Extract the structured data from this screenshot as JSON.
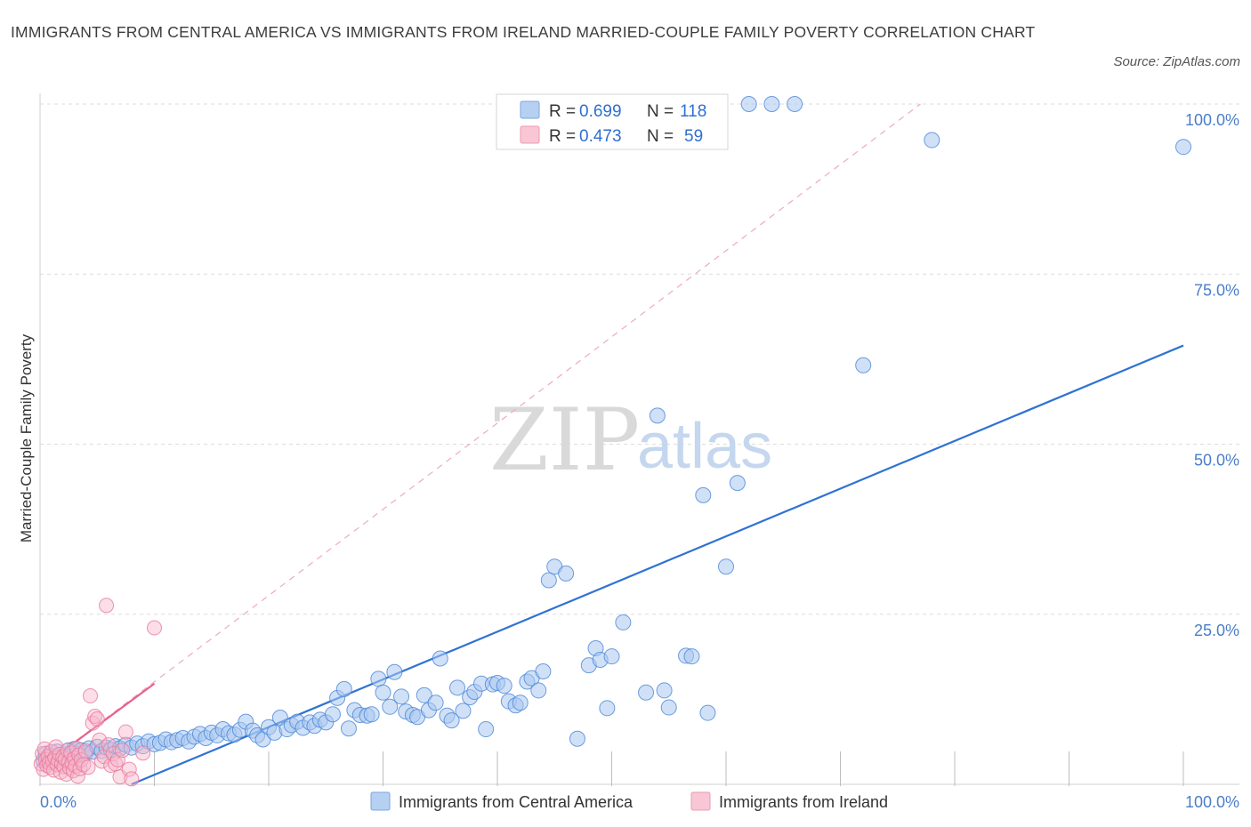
{
  "title": "IMMIGRANTS FROM CENTRAL AMERICA VS IMMIGRANTS FROM IRELAND MARRIED-COUPLE FAMILY POVERTY CORRELATION CHART",
  "source": "Source: ZipAtlas.com",
  "watermark": {
    "zip": "ZIP",
    "atlas": "atlas"
  },
  "colors": {
    "blue": "#4a86d8",
    "blue_fill": "#a9c8f0",
    "blue_line": "#2f72d4",
    "pink": "#e8789c",
    "pink_fill": "#f6b6c9",
    "pink_line": "#e8608e",
    "grid": "#dcdcdc",
    "tick_text": "#4a7ecb"
  },
  "legend": {
    "r_label": "R =",
    "n_label": "N =",
    "series1": {
      "r": "0.699",
      "n": "118"
    },
    "series2": {
      "r": "0.473",
      "n": "59"
    }
  },
  "chart_data": {
    "type": "scatter",
    "title": "IMMIGRANTS FROM CENTRAL AMERICA VS IMMIGRANTS FROM IRELAND MARRIED-COUPLE FAMILY POVERTY CORRELATION CHART",
    "xlabel": "",
    "ylabel": "Married-Couple Family Poverty",
    "xlim": [
      0,
      100
    ],
    "ylim": [
      0,
      100
    ],
    "x_tick_labels": [
      "0.0%",
      "100.0%"
    ],
    "y_tick_labels": [
      "25.0%",
      "50.0%",
      "75.0%",
      "100.0%"
    ],
    "y_ticks": [
      25,
      50,
      75,
      100
    ],
    "grid": true,
    "legend_position": "top-center",
    "series": [
      {
        "name": "Immigrants from Central America",
        "color": "#4a86d8",
        "r": 0.699,
        "n": 118,
        "trend": {
          "x": [
            8,
            100
          ],
          "y": [
            0,
            64.5
          ]
        },
        "points": [
          [
            0.3,
            3.5
          ],
          [
            0.5,
            4.5
          ],
          [
            0.8,
            3.8
          ],
          [
            1,
            4.2
          ],
          [
            1.2,
            3.5
          ],
          [
            1.5,
            4.8
          ],
          [
            1.8,
            4
          ],
          [
            2,
            3.6
          ],
          [
            2.2,
            4.4
          ],
          [
            2.5,
            5
          ],
          [
            2.8,
            4.2
          ],
          [
            3,
            5.2
          ],
          [
            3.3,
            4.5
          ],
          [
            3.6,
            5
          ],
          [
            4,
            4.6
          ],
          [
            4.3,
            5.3
          ],
          [
            4.6,
            4.8
          ],
          [
            5,
            5.5
          ],
          [
            5.4,
            4.9
          ],
          [
            5.8,
            5.4
          ],
          [
            6.2,
            5.1
          ],
          [
            6.6,
            5.6
          ],
          [
            7,
            5.3
          ],
          [
            7.5,
            5.8
          ],
          [
            8,
            5.4
          ],
          [
            8.5,
            6
          ],
          [
            9,
            5.6
          ],
          [
            9.5,
            6.3
          ],
          [
            10,
            5.9
          ],
          [
            10.5,
            6.1
          ],
          [
            11,
            6.6
          ],
          [
            11.5,
            6.2
          ],
          [
            12,
            6.5
          ],
          [
            12.5,
            6.8
          ],
          [
            13,
            6.3
          ],
          [
            13.5,
            7
          ],
          [
            14,
            7.4
          ],
          [
            14.5,
            6.8
          ],
          [
            15,
            7.6
          ],
          [
            15.5,
            7.2
          ],
          [
            16,
            8.1
          ],
          [
            16.5,
            7.5
          ],
          [
            17,
            7.3
          ],
          [
            17.5,
            8
          ],
          [
            18,
            9.2
          ],
          [
            18.6,
            7.9
          ],
          [
            19,
            7.2
          ],
          [
            19.5,
            6.6
          ],
          [
            20,
            8.4
          ],
          [
            20.5,
            7.6
          ],
          [
            21,
            9.8
          ],
          [
            21.6,
            8.1
          ],
          [
            22,
            8.7
          ],
          [
            22.5,
            9.2
          ],
          [
            23,
            8.3
          ],
          [
            23.6,
            9.1
          ],
          [
            24,
            8.6
          ],
          [
            24.5,
            9.5
          ],
          [
            25,
            9.1
          ],
          [
            25.6,
            10.3
          ],
          [
            26,
            12.7
          ],
          [
            26.6,
            14
          ],
          [
            27,
            8.2
          ],
          [
            27.5,
            10.9
          ],
          [
            28,
            10.2
          ],
          [
            28.6,
            10.1
          ],
          [
            29,
            10.3
          ],
          [
            29.6,
            15.5
          ],
          [
            30,
            13.5
          ],
          [
            30.6,
            11.4
          ],
          [
            31,
            16.5
          ],
          [
            31.6,
            12.9
          ],
          [
            32,
            10.7
          ],
          [
            32.6,
            10.2
          ],
          [
            33,
            9.9
          ],
          [
            33.6,
            13.1
          ],
          [
            34,
            10.9
          ],
          [
            34.6,
            12
          ],
          [
            35,
            18.5
          ],
          [
            35.6,
            10.1
          ],
          [
            36,
            9.4
          ],
          [
            36.5,
            14.2
          ],
          [
            37,
            10.8
          ],
          [
            37.6,
            12.8
          ],
          [
            38,
            13.6
          ],
          [
            38.6,
            14.8
          ],
          [
            39,
            8.1
          ],
          [
            39.6,
            14.7
          ],
          [
            40,
            14.9
          ],
          [
            40.6,
            14.5
          ],
          [
            41,
            12.2
          ],
          [
            41.6,
            11.6
          ],
          [
            42,
            12
          ],
          [
            42.6,
            15.1
          ],
          [
            43,
            15.6
          ],
          [
            43.6,
            13.8
          ],
          [
            44,
            16.6
          ],
          [
            44.5,
            30
          ],
          [
            45,
            32
          ],
          [
            46,
            31
          ],
          [
            47,
            6.7
          ],
          [
            48,
            17.5
          ],
          [
            48.6,
            20
          ],
          [
            49,
            18.3
          ],
          [
            49.6,
            11.2
          ],
          [
            50,
            18.8
          ],
          [
            51,
            23.8
          ],
          [
            53,
            13.5
          ],
          [
            54,
            54.2
          ],
          [
            54.6,
            13.8
          ],
          [
            55,
            11.3
          ],
          [
            56.5,
            18.9
          ],
          [
            57,
            18.8
          ],
          [
            58,
            42.5
          ],
          [
            58.4,
            10.5
          ],
          [
            60,
            32
          ],
          [
            61,
            44.3
          ],
          [
            62,
            100
          ],
          [
            64,
            100
          ],
          [
            66,
            100
          ],
          [
            72,
            61.6
          ],
          [
            78,
            94.7
          ],
          [
            100,
            93.7
          ]
        ]
      },
      {
        "name": "Immigrants from Ireland",
        "color": "#e8789c",
        "r": 0.473,
        "n": 59,
        "trend": {
          "x": [
            0,
            10
          ],
          "y": [
            2.4,
            14.8
          ]
        },
        "trend_dashed": {
          "x": [
            0,
            77
          ],
          "y": [
            2.4,
            100
          ]
        },
        "points": [
          [
            0.1,
            3
          ],
          [
            0.2,
            4.5
          ],
          [
            0.3,
            2.2
          ],
          [
            0.4,
            5.2
          ],
          [
            0.5,
            3.6
          ],
          [
            0.6,
            2.8
          ],
          [
            0.7,
            4.1
          ],
          [
            0.8,
            3.2
          ],
          [
            0.9,
            2.5
          ],
          [
            1,
            4.8
          ],
          [
            1.1,
            3.4
          ],
          [
            1.2,
            2.1
          ],
          [
            1.3,
            3.9
          ],
          [
            1.4,
            5.5
          ],
          [
            1.5,
            2.9
          ],
          [
            1.6,
            3.5
          ],
          [
            1.7,
            4.4
          ],
          [
            1.8,
            1.8
          ],
          [
            1.9,
            3
          ],
          [
            2,
            4
          ],
          [
            2.1,
            2.6
          ],
          [
            2.2,
            3.7
          ],
          [
            2.3,
            1.5
          ],
          [
            2.4,
            5
          ],
          [
            2.5,
            3.3
          ],
          [
            2.6,
            2.4
          ],
          [
            2.7,
            4.6
          ],
          [
            2.8,
            3.1
          ],
          [
            2.9,
            2
          ],
          [
            3,
            3.8
          ],
          [
            3.1,
            2.7
          ],
          [
            3.2,
            5.3
          ],
          [
            3.3,
            1.2
          ],
          [
            3.4,
            4.3
          ],
          [
            3.5,
            2.3
          ],
          [
            3.6,
            3.6
          ],
          [
            3.8,
            2.9
          ],
          [
            4,
            4.9
          ],
          [
            4.2,
            2.5
          ],
          [
            4.4,
            13
          ],
          [
            4.6,
            9
          ],
          [
            4.8,
            10
          ],
          [
            5,
            9.6
          ],
          [
            5.2,
            6.5
          ],
          [
            5.4,
            3.4
          ],
          [
            5.6,
            4.1
          ],
          [
            5.8,
            26.3
          ],
          [
            6,
            5.8
          ],
          [
            6.2,
            2.8
          ],
          [
            6.4,
            4.5
          ],
          [
            6.6,
            3
          ],
          [
            6.8,
            3.6
          ],
          [
            7,
            1.1
          ],
          [
            7.2,
            5
          ],
          [
            7.5,
            7.7
          ],
          [
            7.8,
            2.2
          ],
          [
            8,
            0.8
          ],
          [
            9,
            4.6
          ],
          [
            10,
            23
          ]
        ]
      }
    ]
  },
  "bottom_legend": {
    "series1": "Immigrants from Central America",
    "series2": "Immigrants from Ireland"
  }
}
